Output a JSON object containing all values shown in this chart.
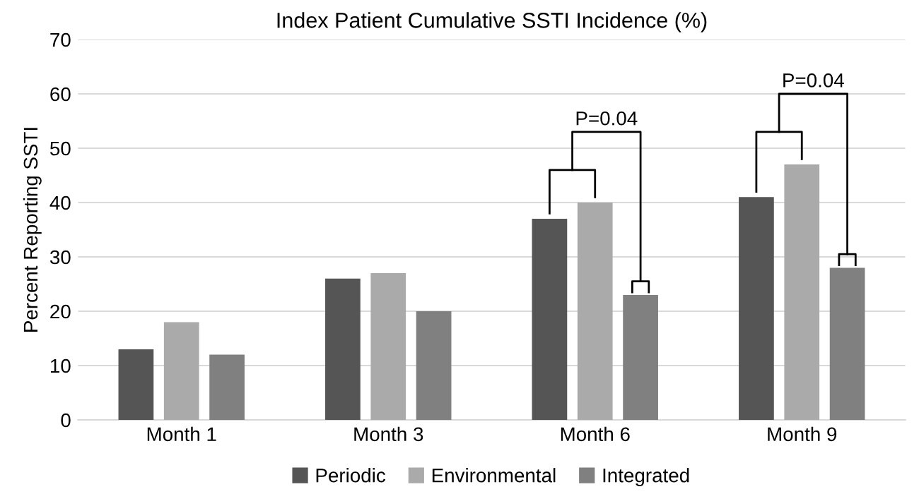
{
  "chart_data": {
    "type": "bar",
    "title": "Index Patient Cumulative SSTI Incidence (%)",
    "ylabel": "Percent Reporting SSTI",
    "categories": [
      "Month 1",
      "Month 3",
      "Month 6",
      "Month 9"
    ],
    "series": [
      {
        "name": "Periodic",
        "color": "#555555",
        "values": [
          13,
          26,
          37,
          41
        ]
      },
      {
        "name": "Environmental",
        "color": "#aaaaaa",
        "values": [
          18,
          27,
          40,
          47
        ]
      },
      {
        "name": "Integrated",
        "color": "#808080",
        "values": [
          12,
          20,
          23,
          28
        ]
      }
    ],
    "ylim": [
      0,
      70
    ],
    "yticks": [
      0,
      10,
      20,
      30,
      40,
      50,
      60,
      70
    ],
    "grid": "y",
    "legend": "bottom",
    "annotations": [
      "P=0.04",
      "P=0.04"
    ]
  }
}
